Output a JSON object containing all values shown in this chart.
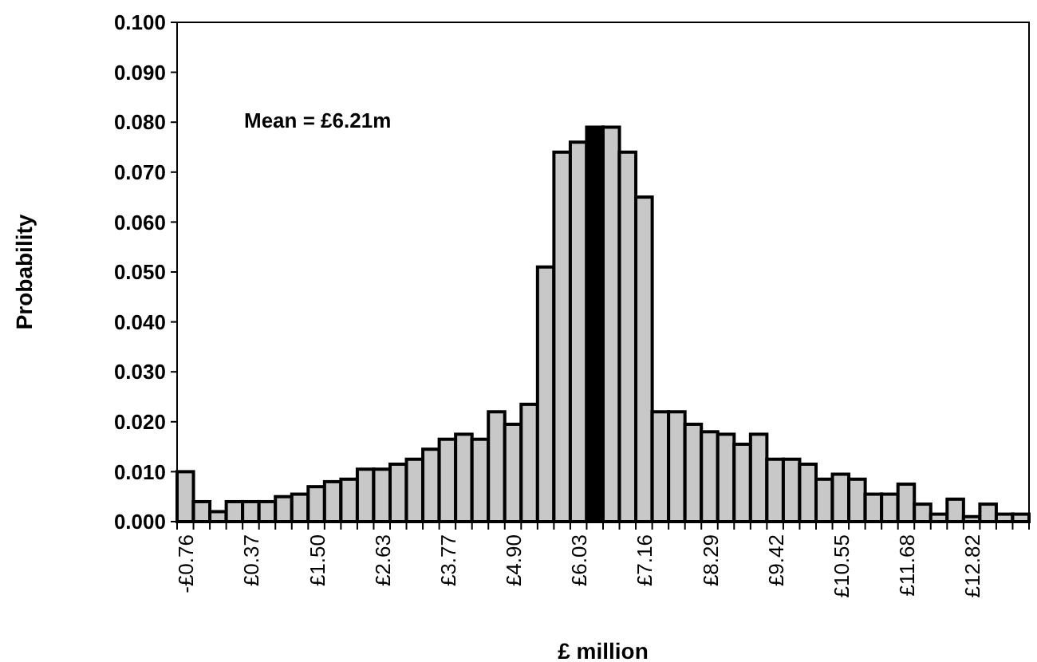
{
  "chart_data": {
    "type": "bar",
    "xlabel": "£ million",
    "ylabel": "Probability",
    "annotations": [
      "Mean = £6.21m"
    ],
    "categories": [
      "-£0.76",
      null,
      null,
      null,
      "£0.37",
      null,
      null,
      null,
      "£1.50",
      null,
      null,
      null,
      "£2.63",
      null,
      null,
      null,
      "£3.77",
      null,
      null,
      null,
      "£4.90",
      null,
      null,
      null,
      "£6.03",
      null,
      null,
      null,
      "£7.16",
      null,
      null,
      null,
      "£8.29",
      null,
      null,
      null,
      "£9.42",
      null,
      null,
      null,
      "£10.55",
      null,
      null,
      null,
      "£11.68",
      null,
      null,
      null,
      "£12.82",
      null,
      null,
      null
    ],
    "values": [
      0.01,
      0.004,
      0.002,
      0.004,
      0.004,
      0.004,
      0.005,
      0.0055,
      0.007,
      0.008,
      0.0085,
      0.0105,
      0.0105,
      0.0115,
      0.0125,
      0.0145,
      0.0165,
      0.0175,
      0.0165,
      0.022,
      0.0195,
      0.0235,
      0.051,
      0.074,
      0.076,
      0.079,
      0.079,
      0.074,
      0.065,
      0.022,
      0.022,
      0.0195,
      0.018,
      0.0175,
      0.0155,
      0.0175,
      0.0125,
      0.0125,
      0.0115,
      0.0085,
      0.0095,
      0.0085,
      0.0055,
      0.0055,
      0.0075,
      0.0035,
      0.0015,
      0.0045,
      0.001,
      0.0035,
      0.0015,
      0.0015
    ],
    "colors": [
      "#c8c8c8",
      "#c8c8c8",
      "#c8c8c8",
      "#c8c8c8",
      "#c8c8c8",
      "#c8c8c8",
      "#c8c8c8",
      "#c8c8c8",
      "#c8c8c8",
      "#c8c8c8",
      "#c8c8c8",
      "#c8c8c8",
      "#c8c8c8",
      "#c8c8c8",
      "#c8c8c8",
      "#c8c8c8",
      "#c8c8c8",
      "#c8c8c8",
      "#c8c8c8",
      "#c8c8c8",
      "#c8c8c8",
      "#c8c8c8",
      "#c8c8c8",
      "#c8c8c8",
      "#c8c8c8",
      "#000000",
      "#c8c8c8",
      "#c8c8c8",
      "#c8c8c8",
      "#c8c8c8",
      "#c8c8c8",
      "#c8c8c8",
      "#c8c8c8",
      "#c8c8c8",
      "#c8c8c8",
      "#c8c8c8",
      "#c8c8c8",
      "#c8c8c8",
      "#c8c8c8",
      "#c8c8c8",
      "#c8c8c8",
      "#c8c8c8",
      "#c8c8c8",
      "#c8c8c8",
      "#c8c8c8",
      "#c8c8c8",
      "#c8c8c8",
      "#c8c8c8",
      "#c8c8c8",
      "#c8c8c8",
      "#c8c8c8",
      "#c8c8c8"
    ],
    "ylim": [
      0,
      0.1
    ],
    "yticks": [
      {
        "value": 0,
        "label": "0.000"
      },
      {
        "value": 0.01,
        "label": "0.010"
      },
      {
        "value": 0.02,
        "label": "0.020"
      },
      {
        "value": 0.03,
        "label": "0.030"
      },
      {
        "value": 0.04,
        "label": "0.040"
      },
      {
        "value": 0.05,
        "label": "0.050"
      },
      {
        "value": 0.06,
        "label": "0.060"
      },
      {
        "value": 0.07,
        "label": "0.070"
      },
      {
        "value": 0.08,
        "label": "0.080"
      },
      {
        "value": 0.09,
        "label": "0.090"
      },
      {
        "value": 0.1,
        "label": "0.100"
      }
    ],
    "grid": false
  }
}
